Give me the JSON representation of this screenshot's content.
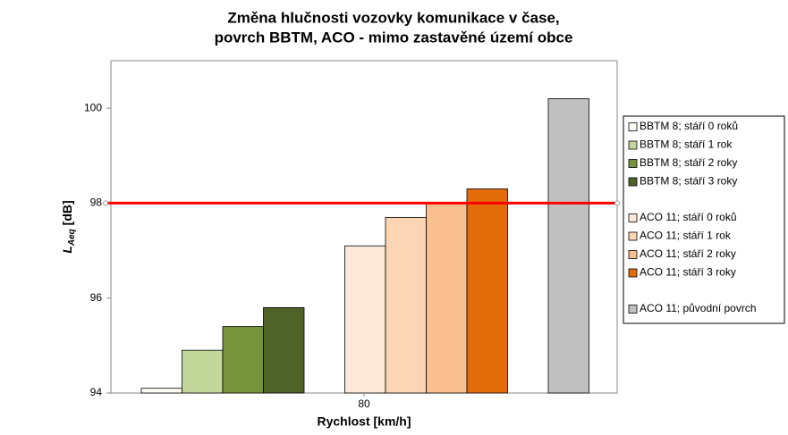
{
  "chart_data": {
    "type": "bar",
    "title": [
      "Změna hlučnosti vozovky komunikace v čase,",
      "povrch BBTM, ACO - mimo zastavěné území obce"
    ],
    "xlabel": "Rychlost [km/h]",
    "ylabel": "L",
    "ylabel_subscript": "Aeq",
    "ylabel_unit": "[dB]",
    "categories": [
      "80"
    ],
    "series": [
      {
        "name": "BBTM 8; stáří 0 roků",
        "color": "#fdfbf1",
        "values": [
          94.1
        ]
      },
      {
        "name": "BBTM 8; stáří 1 rok",
        "color": "#c4d79b",
        "values": [
          94.9
        ]
      },
      {
        "name": "BBTM 8; stáří 2 roky",
        "color": "#77933c",
        "values": [
          95.4
        ]
      },
      {
        "name": "BBTM 8; stáří 3 roky",
        "color": "#4f6228",
        "values": [
          95.8
        ]
      },
      {
        "name": "ACO 11; stáří 0 roků",
        "color": "#fde9d9",
        "values": [
          97.1
        ]
      },
      {
        "name": "ACO 11; stáří 1 rok",
        "color": "#fcd5b4",
        "values": [
          97.7
        ]
      },
      {
        "name": "ACO 11; stáří 2 roky",
        "color": "#fabf8f",
        "values": [
          98.0
        ]
      },
      {
        "name": "ACO 11; stáří 3 roky",
        "color": "#e26b0a",
        "values": [
          98.3
        ]
      },
      {
        "name": "ACO 11; původní povrch",
        "color": "#c0c0c0",
        "values": [
          100.2
        ]
      }
    ],
    "ylim": [
      94,
      101
    ],
    "yticks": [
      94,
      96,
      98,
      100
    ],
    "reference_line": {
      "value": 98,
      "color": "#ff0000"
    },
    "legend": "right",
    "grid": false
  }
}
